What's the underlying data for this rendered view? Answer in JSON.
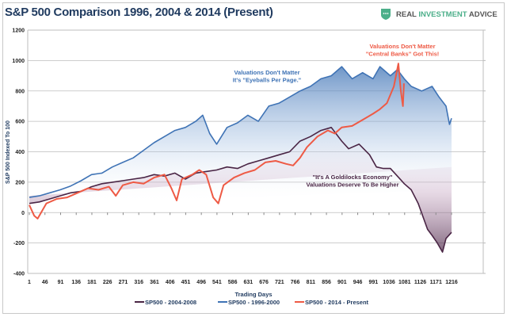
{
  "chart_data": {
    "type": "line",
    "title": "S&P 500 Comparison 1996, 2004 & 2014 (Present)",
    "xlabel": "Trading Days",
    "ylabel": "S&P 500 Indexed To 100",
    "ylim": [
      -400,
      1200
    ],
    "yticks": [
      -400,
      -200,
      0,
      200,
      400,
      600,
      800,
      1000,
      1200
    ],
    "xticks": [
      1,
      46,
      91,
      136,
      181,
      226,
      271,
      316,
      361,
      406,
      451,
      496,
      541,
      586,
      631,
      676,
      721,
      766,
      811,
      856,
      901,
      946,
      991,
      1036,
      1081,
      1126,
      1171,
      1216
    ],
    "grid": true,
    "legend_position": "bottom",
    "series": [
      {
        "name": "SP500 - 2004-2008",
        "color": "#4a2545",
        "x": [
          1,
          30,
          60,
          90,
          120,
          150,
          180,
          210,
          240,
          270,
          300,
          330,
          360,
          390,
          420,
          450,
          480,
          510,
          540,
          570,
          600,
          630,
          660,
          690,
          720,
          750,
          780,
          810,
          840,
          870,
          900,
          920,
          950,
          980,
          1000,
          1020,
          1040,
          1060,
          1080,
          1100,
          1120,
          1147,
          1160,
          1175,
          1190,
          1200,
          1216
        ],
        "y": [
          60,
          70,
          90,
          110,
          130,
          140,
          170,
          190,
          200,
          210,
          220,
          230,
          250,
          240,
          260,
          220,
          260,
          270,
          280,
          300,
          290,
          320,
          340,
          360,
          380,
          400,
          470,
          500,
          540,
          560,
          470,
          420,
          450,
          380,
          300,
          290,
          290,
          240,
          190,
          150,
          60,
          -110,
          -150,
          -200,
          -260,
          -170,
          -130
        ]
      },
      {
        "name": "SP500 - 1996-2000",
        "color": "#3f73b5",
        "x": [
          1,
          30,
          60,
          90,
          120,
          150,
          180,
          210,
          240,
          270,
          300,
          330,
          360,
          390,
          420,
          450,
          480,
          500,
          520,
          540,
          570,
          600,
          630,
          660,
          690,
          720,
          750,
          780,
          810,
          840,
          870,
          900,
          930,
          960,
          990,
          1010,
          1040,
          1060,
          1080,
          1100,
          1130,
          1160,
          1180,
          1200,
          1210,
          1216
        ],
        "y": [
          100,
          110,
          130,
          150,
          175,
          210,
          250,
          260,
          300,
          330,
          360,
          410,
          460,
          500,
          540,
          560,
          600,
          640,
          520,
          450,
          560,
          590,
          640,
          600,
          700,
          720,
          760,
          800,
          830,
          880,
          900,
          960,
          880,
          920,
          880,
          960,
          900,
          940,
          880,
          830,
          800,
          830,
          760,
          700,
          580,
          620
        ]
      },
      {
        "name": "SP500 - 2014 - Present",
        "color": "#ee5a45",
        "x": [
          1,
          15,
          25,
          50,
          80,
          110,
          140,
          170,
          200,
          230,
          250,
          270,
          300,
          330,
          360,
          390,
          410,
          425,
          440,
          470,
          490,
          510,
          530,
          545,
          560,
          590,
          620,
          650,
          680,
          710,
          740,
          760,
          780,
          800,
          830,
          860,
          880,
          900,
          930,
          960,
          990,
          1010,
          1030,
          1050,
          1063,
          1070,
          1076,
          1079
        ],
        "y": [
          50,
          -20,
          -40,
          60,
          90,
          100,
          130,
          160,
          150,
          170,
          110,
          180,
          200,
          190,
          230,
          250,
          160,
          80,
          220,
          250,
          280,
          250,
          100,
          60,
          180,
          230,
          260,
          280,
          330,
          340,
          320,
          310,
          360,
          430,
          500,
          540,
          520,
          560,
          570,
          610,
          650,
          680,
          720,
          830,
          980,
          800,
          700,
          850
        ]
      }
    ],
    "annotations": [
      {
        "lines": [
          "Valuations Don't Matter",
          "It's \"Eyeballs Per Page.\""
        ],
        "color": "#3f73b5"
      },
      {
        "lines": [
          "Valuations Don't Matter",
          "\"Central Banks\" Got This!"
        ],
        "color": "#ee5a45"
      },
      {
        "lines": [
          "\"It's A Goldilocks Economy\"",
          "Valuations Deserve To Be Higher"
        ],
        "color": "#4a2545"
      }
    ]
  },
  "logo": {
    "word1": "REAL ",
    "word2": "INVESTMENT",
    "word3": " ADVICE",
    "color": "#4caf8a"
  }
}
